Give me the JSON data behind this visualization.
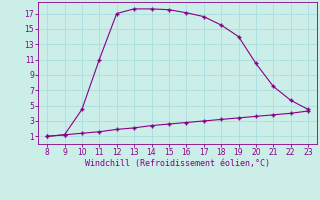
{
  "x_upper": [
    8,
    9,
    10,
    11,
    12,
    13,
    14,
    15,
    16,
    17,
    18,
    19,
    20,
    21,
    22,
    23
  ],
  "y_upper": [
    1.0,
    1.2,
    4.5,
    11.0,
    17.0,
    17.6,
    17.6,
    17.5,
    17.1,
    16.6,
    15.5,
    14.0,
    10.5,
    7.5,
    5.7,
    4.5
  ],
  "x_lower": [
    8,
    9,
    10,
    11,
    12,
    13,
    14,
    15,
    16,
    17,
    18,
    19,
    20,
    21,
    22,
    23
  ],
  "y_lower": [
    1.0,
    1.2,
    1.4,
    1.6,
    1.9,
    2.1,
    2.4,
    2.6,
    2.8,
    3.0,
    3.2,
    3.4,
    3.6,
    3.8,
    4.0,
    4.3
  ],
  "line_color": "#880088",
  "bg_color": "#cceee8",
  "grid_color": "#aadddd",
  "xlabel": "Windchill (Refroidissement éolien,°C)",
  "xlabel_color": "#880088",
  "tick_color": "#880088",
  "xlim": [
    7.5,
    23.5
  ],
  "ylim": [
    0.0,
    18.5
  ],
  "xticks": [
    8,
    9,
    10,
    11,
    12,
    13,
    14,
    15,
    16,
    17,
    18,
    19,
    20,
    21,
    22,
    23
  ],
  "yticks": [
    1,
    3,
    5,
    7,
    9,
    11,
    13,
    15,
    17
  ],
  "marker": "+",
  "figwidth": 3.2,
  "figheight": 2.0,
  "dpi": 100
}
